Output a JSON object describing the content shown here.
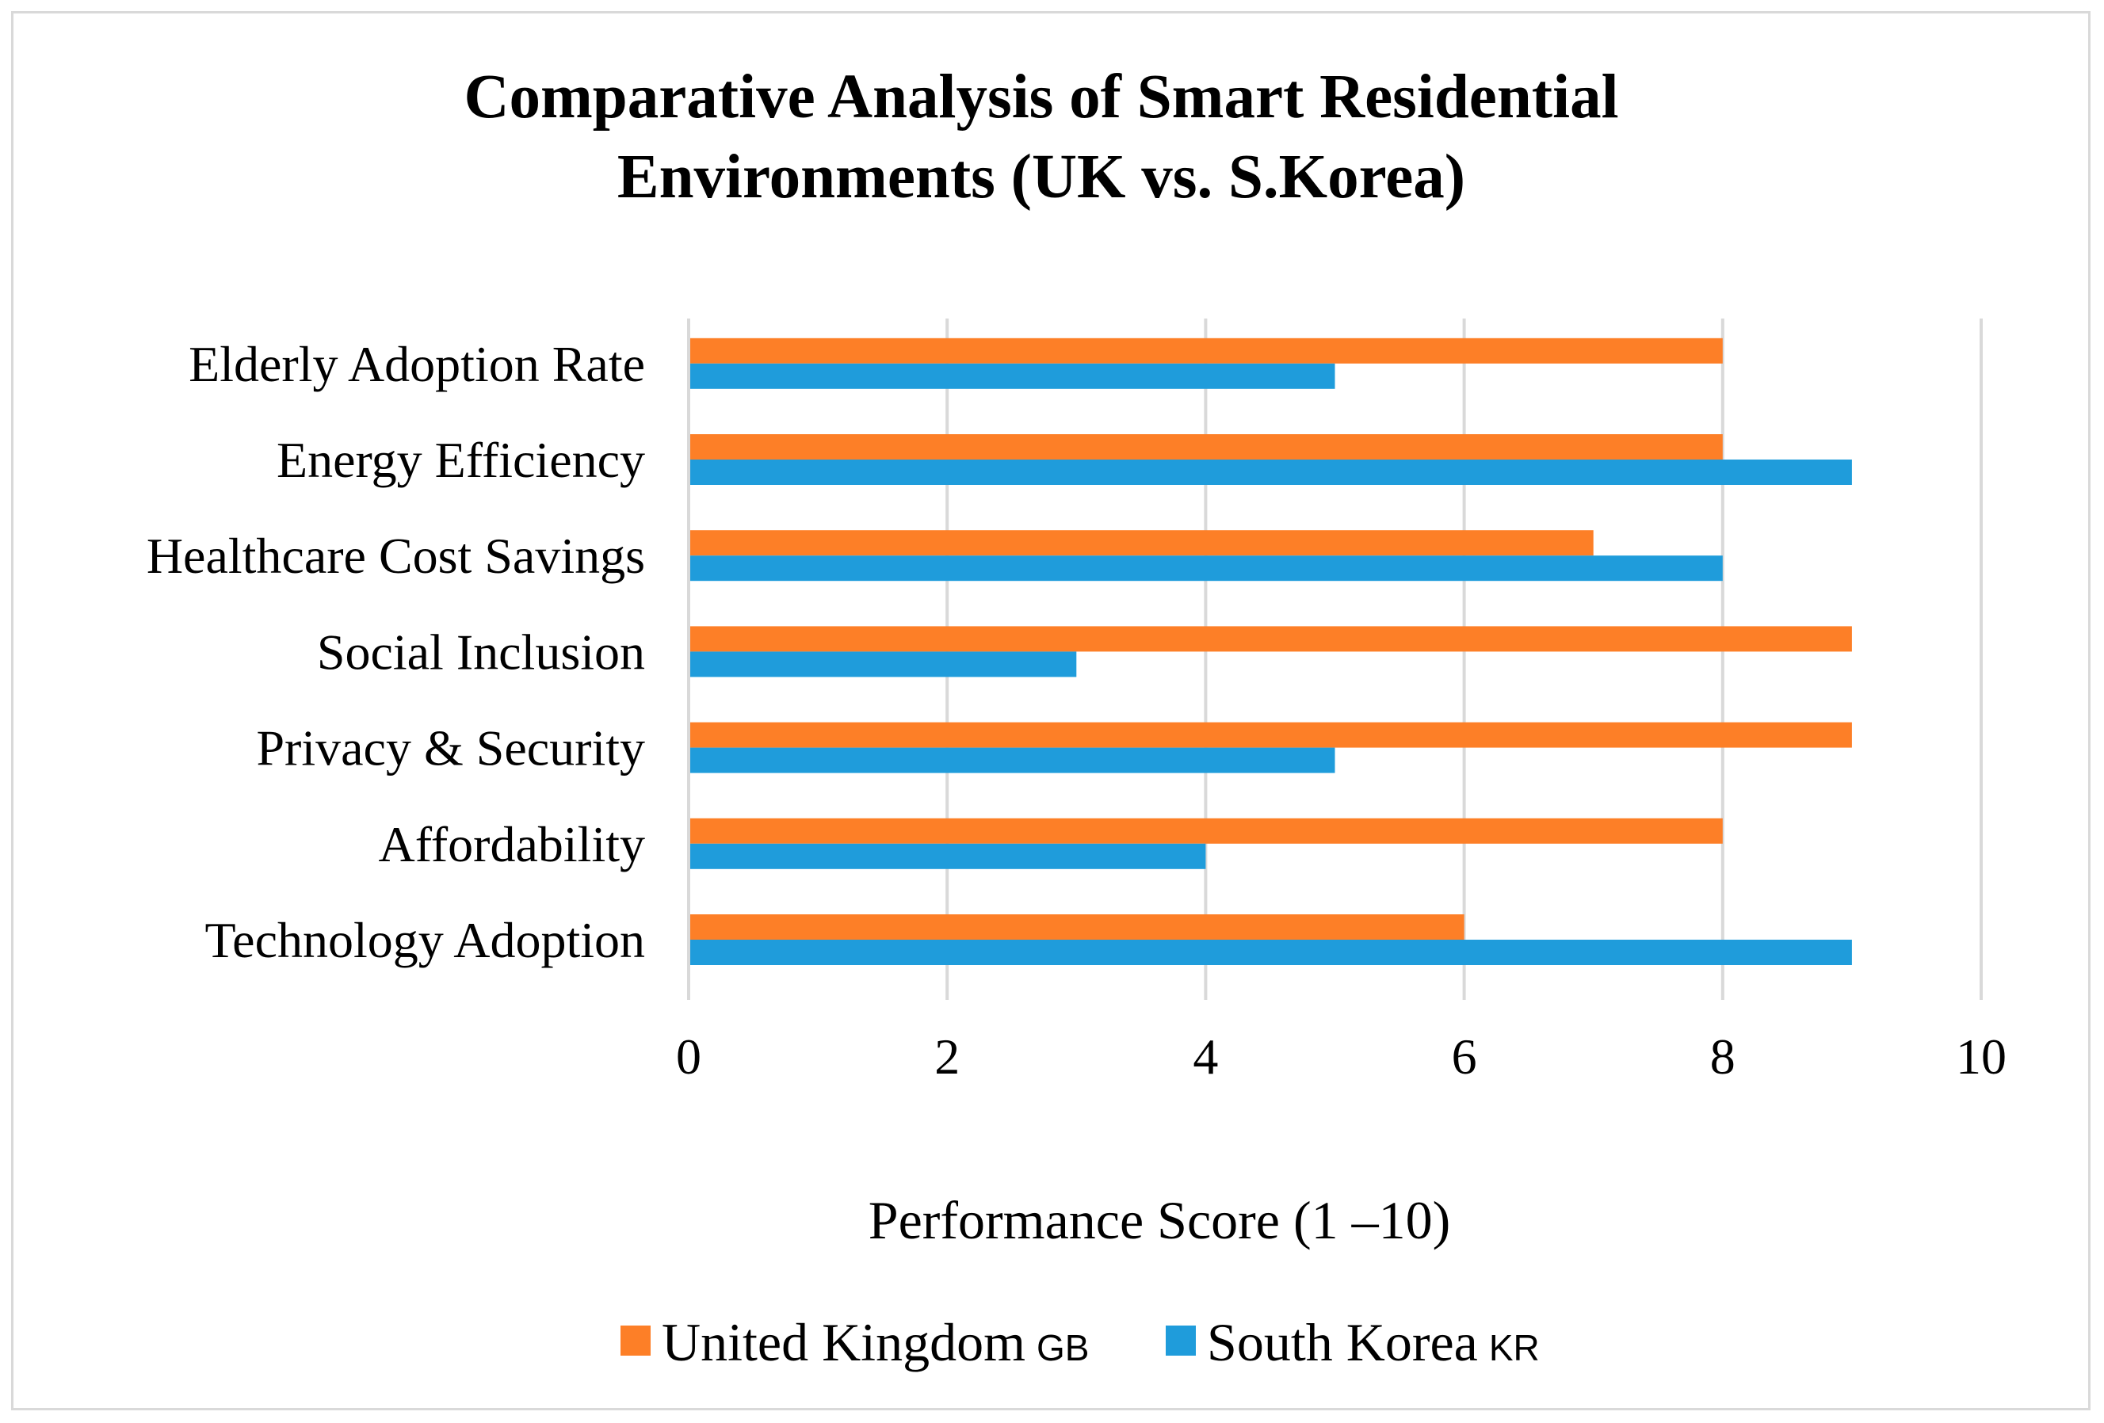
{
  "chart_data": {
    "type": "bar",
    "orientation": "horizontal",
    "title_lines": [
      "Comparative Analysis of Smart Residential",
      "Environments (UK vs. S.Korea)"
    ],
    "categories": [
      "Technology Adoption",
      "Affordability",
      "Privacy & Security",
      "Social Inclusion",
      "Healthcare Cost Savings",
      "Energy Efficiency",
      "Elderly Adoption Rate"
    ],
    "series": [
      {
        "name": "United Kingdom",
        "flag": "GB",
        "color": "#fd7f27",
        "values": [
          6,
          8,
          9,
          9,
          7,
          8,
          8
        ]
      },
      {
        "name": "South Korea",
        "flag": "KR",
        "color": "#1f9cdb",
        "values": [
          9,
          4,
          5,
          3,
          8,
          9,
          5
        ]
      }
    ],
    "xlabel": "Performance Score (1 –10)",
    "ylabel": "",
    "xlim": [
      0,
      10
    ],
    "xticks": [
      "0",
      "2",
      "4",
      "6",
      "8",
      "10"
    ],
    "grid": true,
    "legend_position": "bottom"
  },
  "colors": {
    "gridline": "#d9d9d9",
    "border": "#d9d9d9",
    "text": "#000000"
  }
}
